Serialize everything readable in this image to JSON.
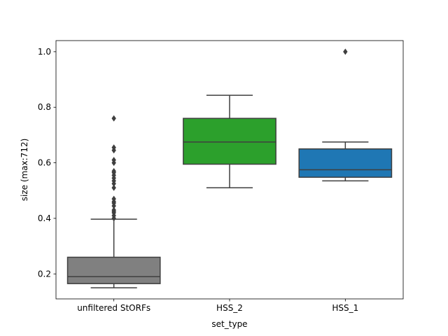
{
  "chart_data": {
    "type": "box",
    "xlabel": "set_type",
    "ylabel": "size (max:712)",
    "ylim": [
      0.11,
      1.04
    ],
    "yticks": [
      0.2,
      0.4,
      0.6,
      0.8,
      1.0
    ],
    "ytick_labels": [
      "0.2",
      "0.4",
      "0.6",
      "0.8",
      "1.0"
    ],
    "grid": false,
    "legend": "none",
    "categories": [
      "unfiltered StORFs",
      "HSS_2",
      "HSS_1"
    ],
    "boxes": [
      {
        "category": "unfiltered StORFs",
        "color": "#808080",
        "whisker_low": 0.15,
        "q1": 0.165,
        "median": 0.19,
        "q3": 0.26,
        "whisker_high": 0.397,
        "outliers": [
          0.4,
          0.41,
          0.42,
          0.425,
          0.43,
          0.445,
          0.455,
          0.46,
          0.47,
          0.51,
          0.525,
          0.535,
          0.545,
          0.555,
          0.565,
          0.57,
          0.6,
          0.61,
          0.645,
          0.655,
          0.76
        ]
      },
      {
        "category": "HSS_2",
        "color": "#2ca02c",
        "whisker_low": 0.51,
        "q1": 0.595,
        "median": 0.675,
        "q3": 0.76,
        "whisker_high": 0.843,
        "outliers": []
      },
      {
        "category": "HSS_1",
        "color": "#1f77b4",
        "whisker_low": 0.535,
        "q1": 0.548,
        "median": 0.575,
        "q3": 0.65,
        "whisker_high": 0.675,
        "outliers": [
          1.0
        ]
      }
    ]
  }
}
